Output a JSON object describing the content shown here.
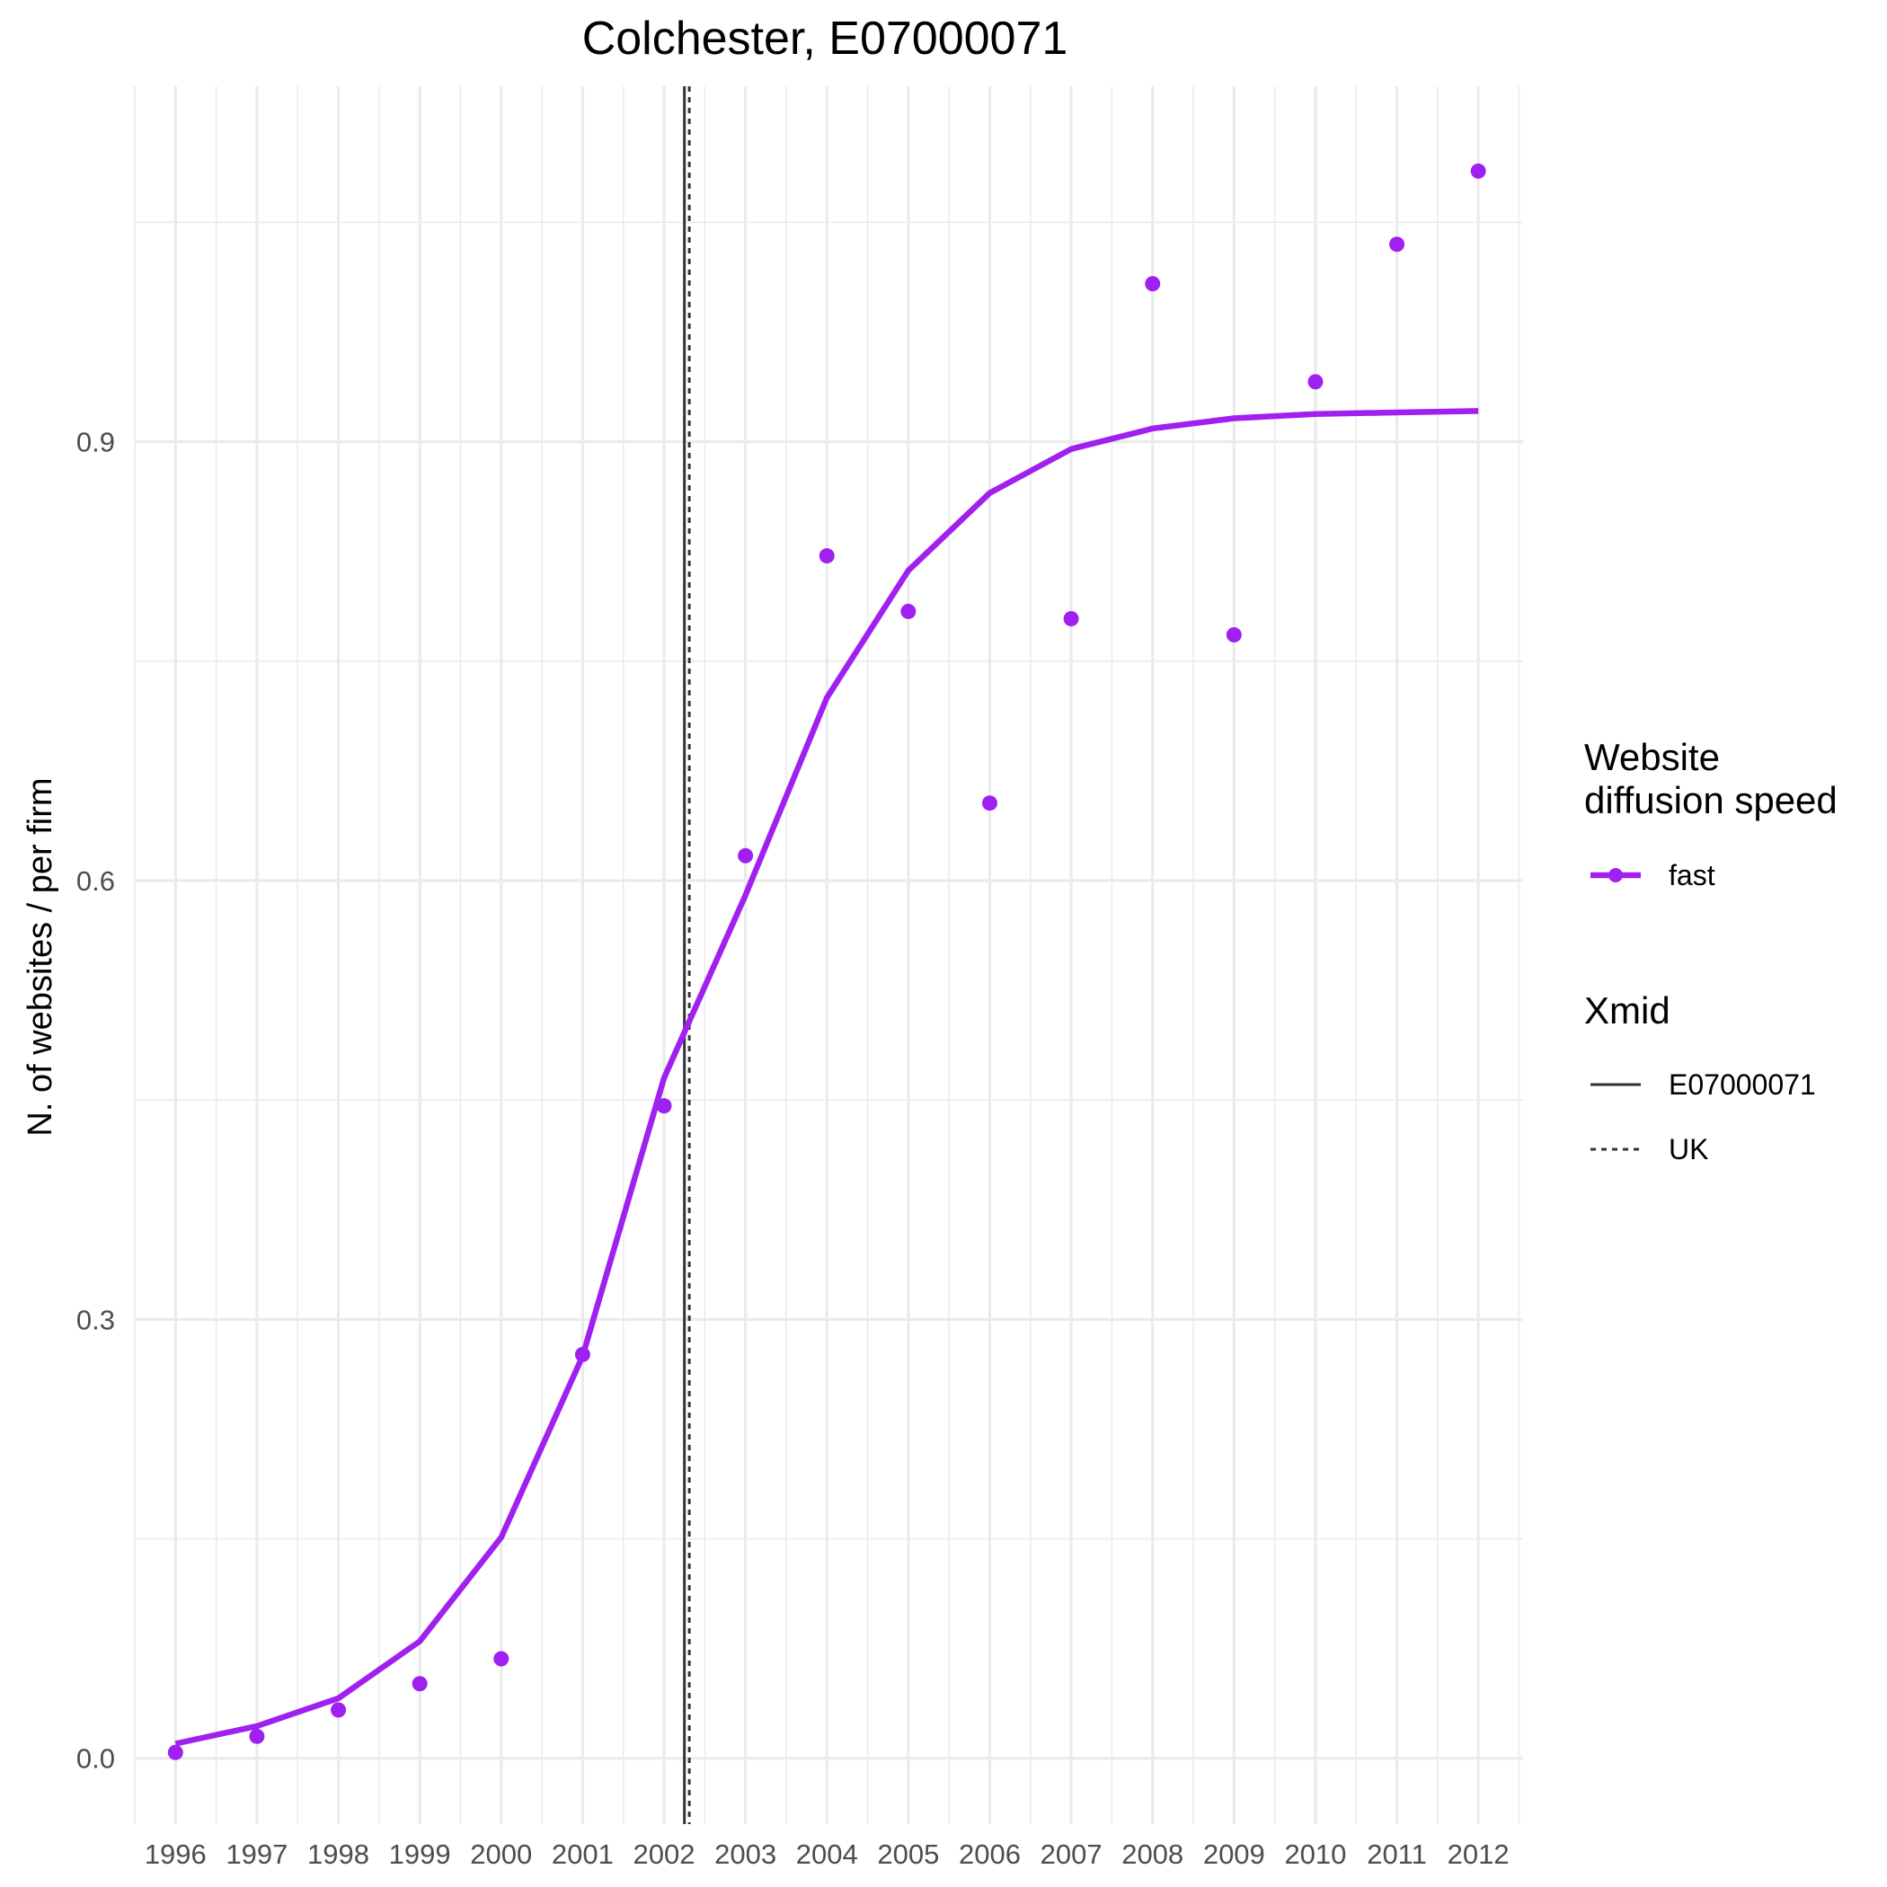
{
  "chart_data": {
    "type": "line",
    "title": "Colchester, E07000071",
    "xlabel": "",
    "ylabel": "N. of websites / per firm",
    "x": [
      1996,
      1997,
      1998,
      1999,
      2000,
      2001,
      2002,
      2003,
      2004,
      2005,
      2006,
      2007,
      2008,
      2009,
      2010,
      2011,
      2012
    ],
    "x_tick_labels": [
      "1996",
      "1997",
      "1998",
      "1999",
      "2000",
      "2001",
      "2002",
      "2003",
      "2004",
      "2005",
      "2006",
      "2007",
      "2008",
      "2009",
      "2010",
      "2011",
      "2012"
    ],
    "y_ticks": [
      0.0,
      0.3,
      0.6,
      0.9
    ],
    "y_tick_labels": [
      "0.0",
      "0.3",
      "0.6",
      "0.9"
    ],
    "xlim": [
      1995.5,
      2012.55
    ],
    "ylim": [
      -0.045,
      1.143
    ],
    "grid": true,
    "legend_position": "right",
    "series": [
      {
        "name": "fast",
        "color": "#a020f0",
        "points": [
          0.004,
          0.015,
          0.033,
          0.051,
          0.068,
          0.276,
          0.446,
          0.617,
          0.822,
          0.784,
          0.653,
          0.779,
          1.008,
          0.768,
          0.941,
          1.035,
          1.085
        ],
        "fitted": [
          0.01,
          0.022,
          0.041,
          0.08,
          0.151,
          0.275,
          0.465,
          0.59,
          0.725,
          0.812,
          0.865,
          0.895,
          0.909,
          0.916,
          0.919,
          0.92,
          0.921
        ]
      }
    ],
    "vlines": [
      {
        "name": "E07000071",
        "x": 2002.25,
        "style": "solid",
        "color": "#333333"
      },
      {
        "name": "UK",
        "x": 2002.31,
        "style": "dashed",
        "color": "#333333"
      }
    ],
    "legend": {
      "speed_title_line1": "Website",
      "speed_title_line2": "diffusion speed",
      "speed_entry": "fast",
      "xmid_title": "Xmid",
      "xmid_entries": [
        "E07000071",
        "UK"
      ]
    }
  }
}
